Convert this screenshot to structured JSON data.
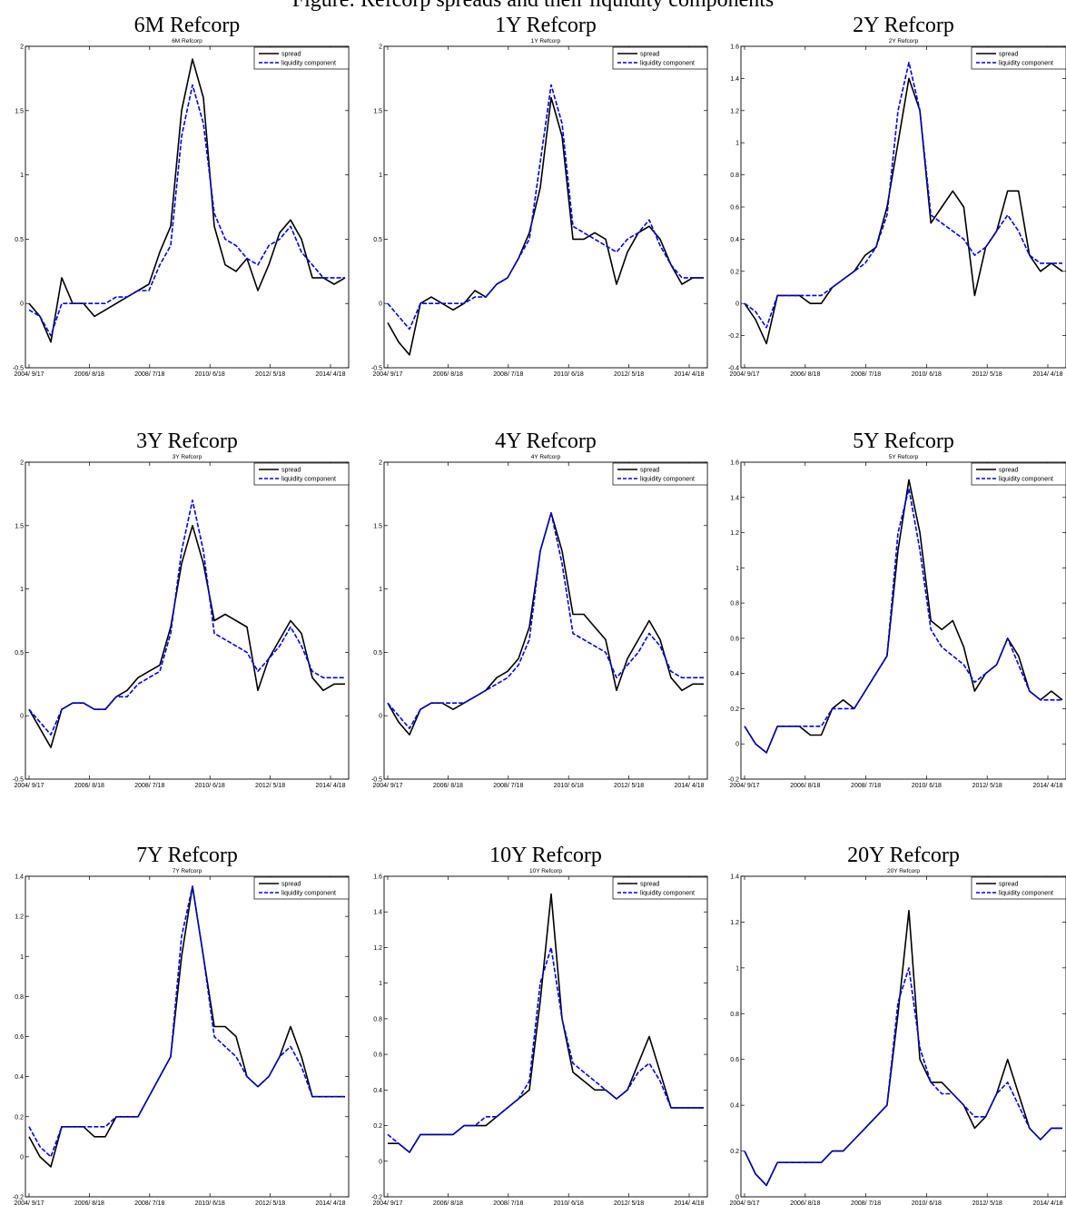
{
  "page": {
    "title": "Figure: Refcorp spreads and their liquidity components"
  },
  "chart_data": [
    {
      "type": "line",
      "title": "6M Refcorp",
      "subtitle": "6M Refcorp",
      "x_ticks": [
        "2004/ 9/17",
        "2006/ 8/18",
        "2008/ 7/18",
        "2010/ 6/18",
        "2012/ 5/18",
        "2014/ 4/18"
      ],
      "ylim": [
        -0.5,
        2
      ],
      "y_ticks": [
        -0.5,
        0,
        0.5,
        1,
        1.5,
        2
      ],
      "y_tick_labels": [
        "-0.5",
        "0",
        "0.5",
        "1",
        "1.5",
        "2"
      ],
      "legend": "top-right",
      "series": [
        {
          "name": "spread",
          "color": "#000000",
          "style": "solid",
          "values": [
            0.0,
            -0.1,
            -0.3,
            0.2,
            0.0,
            0.0,
            -0.1,
            -0.05,
            0.0,
            0.05,
            0.1,
            0.15,
            0.4,
            0.6,
            1.5,
            1.9,
            1.6,
            0.6,
            0.3,
            0.25,
            0.35,
            0.1,
            0.3,
            0.55,
            0.65,
            0.5,
            0.2,
            0.2,
            0.15,
            0.2
          ]
        },
        {
          "name": "liquidity component",
          "color": "#0000ff",
          "style": "dashed",
          "values": [
            -0.05,
            -0.1,
            -0.25,
            0.0,
            0.0,
            0.0,
            0.0,
            0.0,
            0.05,
            0.05,
            0.1,
            0.1,
            0.3,
            0.45,
            1.3,
            1.7,
            1.4,
            0.7,
            0.5,
            0.45,
            0.35,
            0.3,
            0.45,
            0.5,
            0.6,
            0.4,
            0.3,
            0.2,
            0.2,
            0.2
          ]
        }
      ]
    },
    {
      "type": "line",
      "title": "1Y Refcorp",
      "subtitle": "1Y Refcorp",
      "x_ticks": [
        "2004/ 9/17",
        "2006/ 8/18",
        "2008/ 7/18",
        "2010/ 6/18",
        "2012/ 5/18",
        "2014/ 4/18"
      ],
      "ylim": [
        -0.5,
        2
      ],
      "y_ticks": [
        -0.5,
        0,
        0.5,
        1,
        1.5,
        2
      ],
      "y_tick_labels": [
        "-0.5",
        "0",
        "0.5",
        "1",
        "1.5",
        "2"
      ],
      "legend": "top-right",
      "series": [
        {
          "name": "spread",
          "color": "#000000",
          "style": "solid",
          "values": [
            -0.15,
            -0.3,
            -0.4,
            0.0,
            0.05,
            0.0,
            -0.05,
            0.0,
            0.1,
            0.05,
            0.15,
            0.2,
            0.35,
            0.55,
            0.9,
            1.6,
            1.3,
            0.5,
            0.5,
            0.55,
            0.5,
            0.15,
            0.4,
            0.55,
            0.6,
            0.5,
            0.3,
            0.15,
            0.2,
            0.2
          ]
        },
        {
          "name": "liquidity component",
          "color": "#0000ff",
          "style": "dashed",
          "values": [
            0.0,
            -0.1,
            -0.2,
            0.0,
            0.0,
            0.0,
            0.0,
            0.0,
            0.05,
            0.05,
            0.15,
            0.2,
            0.35,
            0.5,
            1.1,
            1.7,
            1.4,
            0.6,
            0.55,
            0.5,
            0.45,
            0.4,
            0.5,
            0.55,
            0.65,
            0.45,
            0.3,
            0.2,
            0.2,
            0.2
          ]
        }
      ]
    },
    {
      "type": "line",
      "title": "2Y Refcorp",
      "subtitle": "2Y Refcorp",
      "x_ticks": [
        "2004/ 9/17",
        "2006/ 8/18",
        "2008/ 7/18",
        "2010/ 6/18",
        "2012/ 5/18",
        "2014/ 4/18"
      ],
      "ylim": [
        -0.4,
        1.6
      ],
      "y_ticks": [
        -0.4,
        -0.2,
        0,
        0.2,
        0.4,
        0.6,
        0.8,
        1,
        1.2,
        1.4,
        1.6
      ],
      "y_tick_labels": [
        "-0.4",
        "-0.2",
        "0",
        "0.2",
        "0.4",
        "0.6",
        "0.8",
        "1",
        "1.2",
        "1.4",
        "1.6"
      ],
      "legend": "top-right",
      "series": [
        {
          "name": "spread",
          "color": "#000000",
          "style": "solid",
          "values": [
            0.0,
            -0.1,
            -0.25,
            0.05,
            0.05,
            0.05,
            0.0,
            0.0,
            0.1,
            0.15,
            0.2,
            0.3,
            0.35,
            0.6,
            1.0,
            1.4,
            1.2,
            0.5,
            0.6,
            0.7,
            0.6,
            0.05,
            0.35,
            0.45,
            0.7,
            0.7,
            0.3,
            0.2,
            0.25,
            0.2
          ]
        },
        {
          "name": "liquidity component",
          "color": "#0000ff",
          "style": "dashed",
          "values": [
            0.0,
            -0.05,
            -0.15,
            0.05,
            0.05,
            0.05,
            0.05,
            0.05,
            0.1,
            0.15,
            0.2,
            0.25,
            0.35,
            0.55,
            1.2,
            1.5,
            1.2,
            0.55,
            0.5,
            0.45,
            0.4,
            0.3,
            0.35,
            0.45,
            0.55,
            0.45,
            0.3,
            0.25,
            0.25,
            0.25
          ]
        }
      ]
    },
    {
      "type": "line",
      "title": "3Y Refcorp",
      "subtitle": "3Y Refcorp",
      "x_ticks": [
        "2004/ 9/17",
        "2006/ 8/18",
        "2008/ 7/18",
        "2010/ 6/18",
        "2012/ 5/18",
        "2014/ 4/18"
      ],
      "ylim": [
        -0.5,
        2
      ],
      "y_ticks": [
        -0.5,
        0,
        0.5,
        1,
        1.5,
        2
      ],
      "y_tick_labels": [
        "-0.5",
        "0",
        "0.5",
        "1",
        "1.5",
        "2"
      ],
      "legend": "top-right",
      "series": [
        {
          "name": "spread",
          "color": "#000000",
          "style": "solid",
          "values": [
            0.05,
            -0.1,
            -0.25,
            0.05,
            0.1,
            0.1,
            0.05,
            0.05,
            0.15,
            0.2,
            0.3,
            0.35,
            0.4,
            0.7,
            1.2,
            1.5,
            1.2,
            0.75,
            0.8,
            0.75,
            0.7,
            0.2,
            0.45,
            0.6,
            0.75,
            0.65,
            0.3,
            0.2,
            0.25,
            0.25
          ]
        },
        {
          "name": "liquidity component",
          "color": "#0000ff",
          "style": "dashed",
          "values": [
            0.05,
            -0.05,
            -0.15,
            0.05,
            0.1,
            0.1,
            0.05,
            0.05,
            0.15,
            0.15,
            0.25,
            0.3,
            0.35,
            0.65,
            1.3,
            1.7,
            1.3,
            0.65,
            0.6,
            0.55,
            0.5,
            0.35,
            0.45,
            0.55,
            0.7,
            0.55,
            0.35,
            0.3,
            0.3,
            0.3
          ]
        }
      ]
    },
    {
      "type": "line",
      "title": "4Y Refcorp",
      "subtitle": "4Y Refcorp",
      "x_ticks": [
        "2004/ 9/17",
        "2006/ 8/18",
        "2008/ 7/18",
        "2010/ 6/18",
        "2012/ 5/18",
        "2014/ 4/18"
      ],
      "ylim": [
        -0.5,
        2
      ],
      "y_ticks": [
        -0.5,
        0,
        0.5,
        1,
        1.5,
        2
      ],
      "y_tick_labels": [
        "-0.5",
        "0",
        "0.5",
        "1",
        "1.5",
        "2"
      ],
      "legend": "top-right",
      "series": [
        {
          "name": "spread",
          "color": "#000000",
          "style": "solid",
          "values": [
            0.1,
            -0.05,
            -0.15,
            0.05,
            0.1,
            0.1,
            0.05,
            0.1,
            0.15,
            0.2,
            0.3,
            0.35,
            0.45,
            0.7,
            1.3,
            1.6,
            1.3,
            0.8,
            0.8,
            0.7,
            0.6,
            0.2,
            0.45,
            0.6,
            0.75,
            0.6,
            0.3,
            0.2,
            0.25,
            0.25
          ]
        },
        {
          "name": "liquidity component",
          "color": "#0000ff",
          "style": "dashed",
          "values": [
            0.1,
            0.0,
            -0.1,
            0.05,
            0.1,
            0.1,
            0.1,
            0.1,
            0.15,
            0.2,
            0.25,
            0.3,
            0.4,
            0.6,
            1.3,
            1.6,
            1.2,
            0.65,
            0.6,
            0.55,
            0.5,
            0.3,
            0.4,
            0.5,
            0.65,
            0.55,
            0.35,
            0.3,
            0.3,
            0.3
          ]
        }
      ]
    },
    {
      "type": "line",
      "title": "5Y Refcorp",
      "subtitle": "5Y Refcorp",
      "x_ticks": [
        "2004/ 9/17",
        "2006/ 8/18",
        "2008/ 7/18",
        "2010/ 6/18",
        "2012/ 5/18",
        "2014/ 4/18"
      ],
      "ylim": [
        -0.2,
        1.6
      ],
      "y_ticks": [
        -0.2,
        0,
        0.2,
        0.4,
        0.6,
        0.8,
        1,
        1.2,
        1.4,
        1.6
      ],
      "y_tick_labels": [
        "-0.2",
        "0",
        "0.2",
        "0.4",
        "0.6",
        "0.8",
        "1",
        "1.2",
        "1.4",
        "1.6"
      ],
      "legend": "top-right",
      "series": [
        {
          "name": "spread",
          "color": "#000000",
          "style": "solid",
          "values": [
            0.1,
            0.0,
            -0.05,
            0.1,
            0.1,
            0.1,
            0.05,
            0.05,
            0.2,
            0.25,
            0.2,
            0.3,
            0.4,
            0.5,
            1.1,
            1.5,
            1.2,
            0.7,
            0.65,
            0.7,
            0.55,
            0.3,
            0.4,
            0.45,
            0.6,
            0.5,
            0.3,
            0.25,
            0.3,
            0.25
          ]
        },
        {
          "name": "liquidity component",
          "color": "#0000ff",
          "style": "dashed",
          "values": [
            0.1,
            0.0,
            -0.05,
            0.1,
            0.1,
            0.1,
            0.1,
            0.1,
            0.2,
            0.2,
            0.2,
            0.3,
            0.4,
            0.5,
            1.2,
            1.45,
            1.1,
            0.65,
            0.55,
            0.5,
            0.45,
            0.35,
            0.4,
            0.45,
            0.6,
            0.45,
            0.3,
            0.25,
            0.25,
            0.25
          ]
        }
      ]
    },
    {
      "type": "line",
      "title": "7Y Refcorp",
      "subtitle": "7Y Refcorp",
      "x_ticks": [
        "2004/ 9/17",
        "2006/ 8/18",
        "2008/ 7/18",
        "2010/ 6/18",
        "2012/ 5/18",
        "2014/ 4/18"
      ],
      "ylim": [
        -0.2,
        1.4
      ],
      "y_ticks": [
        -0.2,
        0,
        0.2,
        0.4,
        0.6,
        0.8,
        1,
        1.2,
        1.4
      ],
      "y_tick_labels": [
        "-0.2",
        "0",
        "0.2",
        "0.4",
        "0.6",
        "0.8",
        "1",
        "1.2",
        "1.4"
      ],
      "legend": "top-right",
      "series": [
        {
          "name": "spread",
          "color": "#000000",
          "style": "solid",
          "values": [
            0.1,
            0.0,
            -0.05,
            0.15,
            0.15,
            0.15,
            0.1,
            0.1,
            0.2,
            0.2,
            0.2,
            0.3,
            0.4,
            0.5,
            1.0,
            1.35,
            1.0,
            0.65,
            0.65,
            0.6,
            0.4,
            0.35,
            0.4,
            0.5,
            0.65,
            0.5,
            0.3,
            0.3,
            0.3,
            0.3
          ]
        },
        {
          "name": "liquidity component",
          "color": "#0000ff",
          "style": "dashed",
          "values": [
            0.15,
            0.05,
            0.0,
            0.15,
            0.15,
            0.15,
            0.15,
            0.15,
            0.2,
            0.2,
            0.2,
            0.3,
            0.4,
            0.5,
            1.1,
            1.35,
            1.0,
            0.6,
            0.55,
            0.5,
            0.4,
            0.35,
            0.4,
            0.5,
            0.55,
            0.45,
            0.3,
            0.3,
            0.3,
            0.3
          ]
        }
      ]
    },
    {
      "type": "line",
      "title": "10Y Refcorp",
      "subtitle": "10Y Refcorp",
      "x_ticks": [
        "2004/ 9/17",
        "2006/ 8/18",
        "2008/ 7/18",
        "2010/ 6/18",
        "2012/ 5/18",
        "2014/ 4/18"
      ],
      "ylim": [
        -0.2,
        1.6
      ],
      "y_ticks": [
        -0.2,
        0,
        0.2,
        0.4,
        0.6,
        0.8,
        1,
        1.2,
        1.4,
        1.6
      ],
      "y_tick_labels": [
        "-0.2",
        "0",
        "0.2",
        "0.4",
        "0.6",
        "0.8",
        "1",
        "1.2",
        "1.4",
        "1.6"
      ],
      "legend": "top-right",
      "series": [
        {
          "name": "spread",
          "color": "#000000",
          "style": "solid",
          "values": [
            0.1,
            0.1,
            0.05,
            0.15,
            0.15,
            0.15,
            0.15,
            0.2,
            0.2,
            0.2,
            0.25,
            0.3,
            0.35,
            0.4,
            0.9,
            1.5,
            0.8,
            0.5,
            0.45,
            0.4,
            0.4,
            0.35,
            0.4,
            0.55,
            0.7,
            0.5,
            0.3,
            0.3,
            0.3,
            0.3
          ]
        },
        {
          "name": "liquidity component",
          "color": "#0000ff",
          "style": "dashed",
          "values": [
            0.15,
            0.1,
            0.05,
            0.15,
            0.15,
            0.15,
            0.15,
            0.2,
            0.2,
            0.25,
            0.25,
            0.3,
            0.35,
            0.45,
            1.0,
            1.2,
            0.8,
            0.55,
            0.5,
            0.45,
            0.4,
            0.35,
            0.4,
            0.5,
            0.55,
            0.45,
            0.3,
            0.3,
            0.3,
            0.3
          ]
        }
      ]
    },
    {
      "type": "line",
      "title": "20Y Refcorp",
      "subtitle": "20Y Refcorp",
      "x_ticks": [
        "2004/ 9/17",
        "2006/ 8/18",
        "2008/ 7/18",
        "2010/ 6/18",
        "2012/ 5/18",
        "2014/ 4/18"
      ],
      "ylim": [
        0,
        1.4
      ],
      "y_ticks": [
        0,
        0.2,
        0.4,
        0.6,
        0.8,
        1,
        1.2,
        1.4
      ],
      "y_tick_labels": [
        "0",
        "0.2",
        "0.4",
        "0.6",
        "0.8",
        "1",
        "1.2",
        "1.4"
      ],
      "legend": "top-right",
      "series": [
        {
          "name": "spread",
          "color": "#000000",
          "style": "solid",
          "values": [
            0.2,
            0.1,
            0.05,
            0.15,
            0.15,
            0.15,
            0.15,
            0.15,
            0.2,
            0.2,
            0.25,
            0.3,
            0.35,
            0.4,
            0.8,
            1.25,
            0.6,
            0.5,
            0.5,
            0.45,
            0.4,
            0.3,
            0.35,
            0.45,
            0.6,
            0.45,
            0.3,
            0.25,
            0.3,
            0.3
          ]
        },
        {
          "name": "liquidity component",
          "color": "#0000ff",
          "style": "dashed",
          "values": [
            0.2,
            0.1,
            0.05,
            0.15,
            0.15,
            0.15,
            0.15,
            0.15,
            0.2,
            0.2,
            0.25,
            0.3,
            0.35,
            0.4,
            0.85,
            1.0,
            0.65,
            0.5,
            0.45,
            0.45,
            0.4,
            0.35,
            0.35,
            0.45,
            0.5,
            0.4,
            0.3,
            0.25,
            0.3,
            0.3
          ]
        }
      ]
    }
  ]
}
